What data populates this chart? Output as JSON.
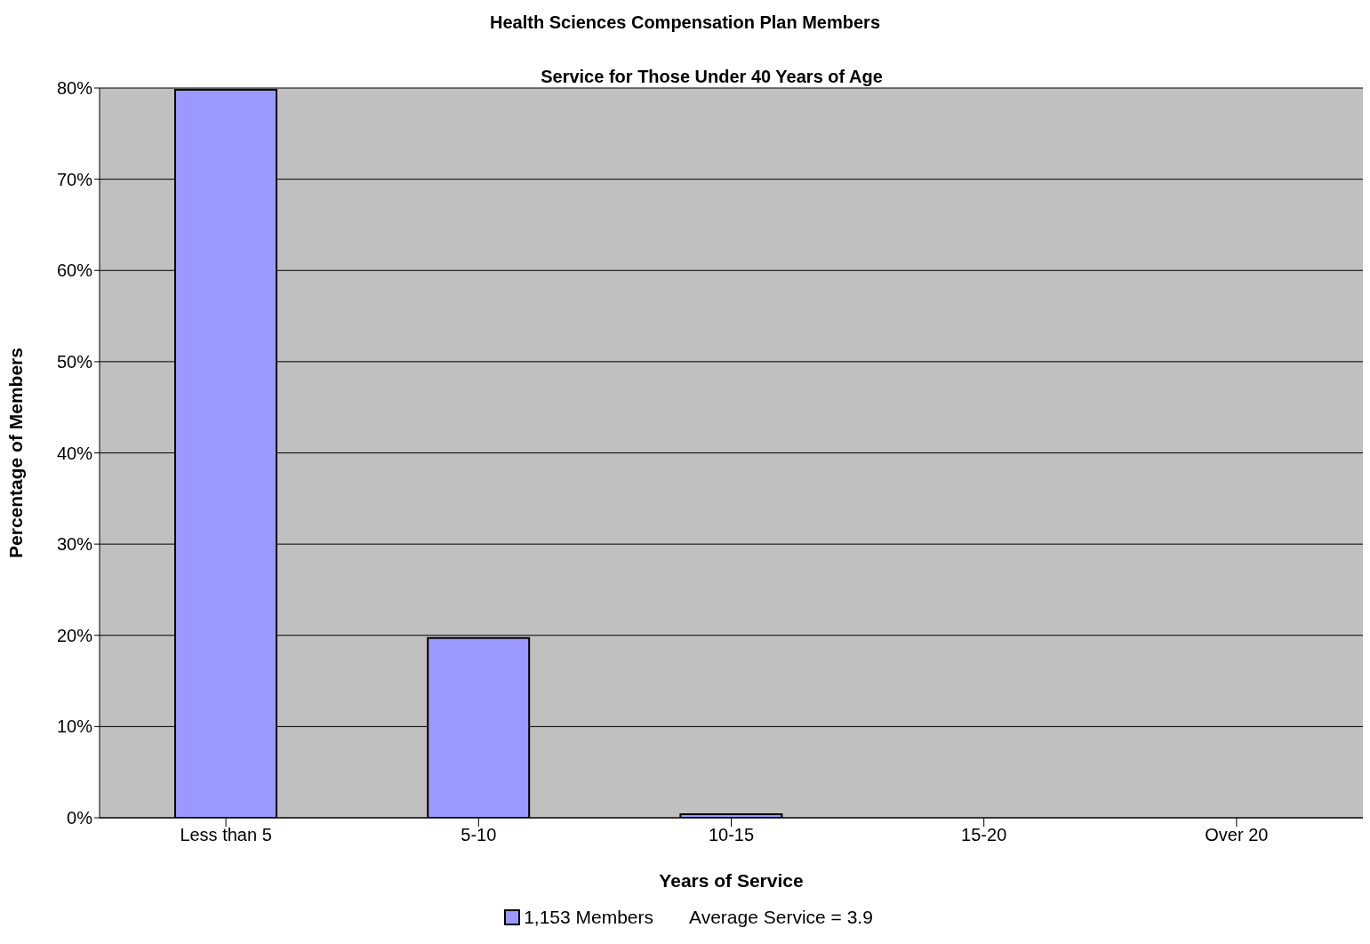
{
  "chart_data": {
    "type": "bar",
    "title": "Health Sciences Compensation Plan Members",
    "subtitle": "Service for Those Under 40 Years of Age",
    "xlabel": "Years of Service",
    "ylabel": "Percentage of Members",
    "categories": [
      "Less than 5",
      "5-10",
      "10-15",
      "15-20",
      "Over 20"
    ],
    "series": [
      {
        "name": "1,153 Members",
        "color": "#9999ff",
        "values": [
          79.8,
          19.7,
          0.4,
          0,
          0
        ]
      }
    ],
    "ylim": [
      0,
      80
    ],
    "yticks": [
      {
        "value": 0,
        "label": "0%"
      },
      {
        "value": 10,
        "label": "10%"
      },
      {
        "value": 20,
        "label": "20%"
      },
      {
        "value": 30,
        "label": "30%"
      },
      {
        "value": 40,
        "label": "40%"
      },
      {
        "value": 50,
        "label": "50%"
      },
      {
        "value": 60,
        "label": "60%"
      },
      {
        "value": 70,
        "label": "70%"
      },
      {
        "value": 80,
        "label": "80%"
      }
    ],
    "grid": "y",
    "legend": "bottom",
    "annotations": [
      "Average Service = 3.9"
    ]
  }
}
